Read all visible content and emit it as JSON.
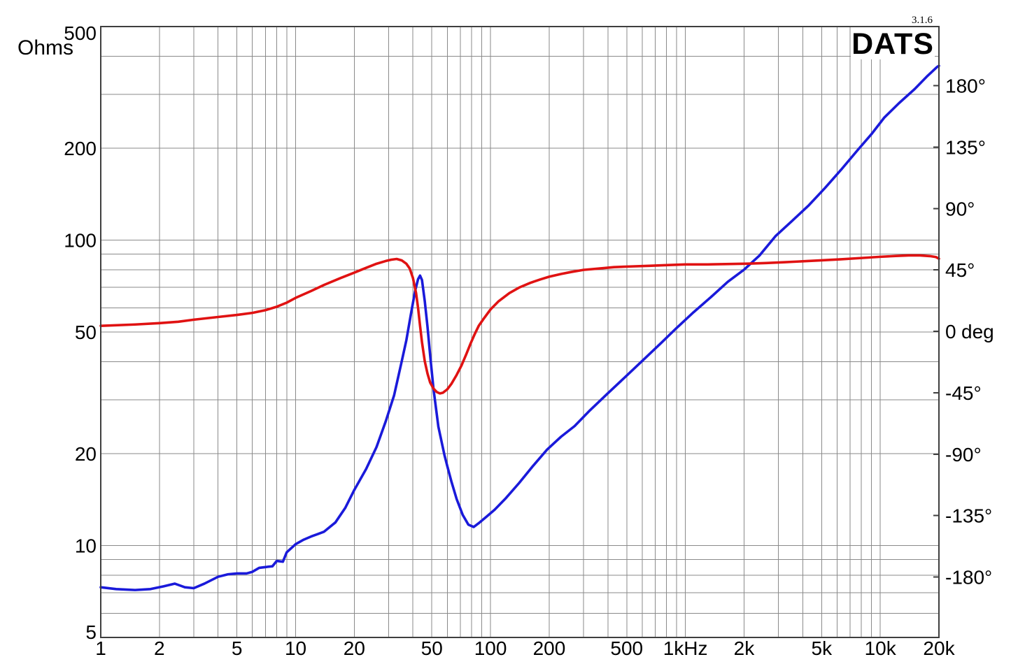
{
  "app": {
    "title": "DATS",
    "version": "3.1.6"
  },
  "labels": {
    "left_axis": "Ohms",
    "right_axis_zero": "0",
    "right_axis_unit": "deg"
  },
  "colors": {
    "impedance_curve": "#1a1ada",
    "phase_curve": "#e01212",
    "left_axis_label": "#3d3dff",
    "right_unit_label": "#ff2222",
    "logo": "#b1b100",
    "grid": "#8a8a8a",
    "border": "#3f3f3f",
    "text": "#000000",
    "background": "#ffffff"
  },
  "chart_data": {
    "type": "line",
    "title": "",
    "grid": true,
    "x_axis": {
      "scale": "log",
      "min": 1,
      "max": 20000,
      "unit": "Hz",
      "ticks": [
        {
          "value": 1,
          "label": "1"
        },
        {
          "value": 2,
          "label": "2"
        },
        {
          "value": 5,
          "label": "5"
        },
        {
          "value": 10,
          "label": "10"
        },
        {
          "value": 20,
          "label": "20"
        },
        {
          "value": 50,
          "label": "50"
        },
        {
          "value": 100,
          "label": "100"
        },
        {
          "value": 200,
          "label": "200"
        },
        {
          "value": 500,
          "label": "500"
        },
        {
          "value": 1000,
          "label": "1kHz"
        },
        {
          "value": 2000,
          "label": "2k"
        },
        {
          "value": 5000,
          "label": "5k"
        },
        {
          "value": 10000,
          "label": "10k"
        },
        {
          "value": 20000,
          "label": "20k"
        }
      ]
    },
    "y_left_axis": {
      "label": "Ohms",
      "scale": "log",
      "min": 5,
      "max": 500,
      "ticks": [
        {
          "value": 500,
          "label": "500"
        },
        {
          "value": 200,
          "label": "200"
        },
        {
          "value": 100,
          "label": "100"
        },
        {
          "value": 50,
          "label": "50"
        },
        {
          "value": 20,
          "label": "20"
        },
        {
          "value": 10,
          "label": "10"
        },
        {
          "value": 5,
          "label": "5"
        }
      ]
    },
    "y_right_axis": {
      "label": "deg",
      "scale": "linear",
      "min": -180,
      "max": 180,
      "ticks": [
        {
          "value": 180,
          "label": "180°"
        },
        {
          "value": 135,
          "label": "135°"
        },
        {
          "value": 90,
          "label": "90°"
        },
        {
          "value": 45,
          "label": "45°"
        },
        {
          "value": 0,
          "label": "0"
        },
        {
          "value": -45,
          "label": "-45°"
        },
        {
          "value": -90,
          "label": "-90°"
        },
        {
          "value": -135,
          "label": "-135°"
        },
        {
          "value": -180,
          "label": "-180°"
        }
      ]
    },
    "series": [
      {
        "name": "impedance_ohms",
        "axis": "left",
        "color_key": "impedance_curve",
        "points": [
          [
            1,
            7.3
          ],
          [
            1.2,
            7.2
          ],
          [
            1.5,
            7.15
          ],
          [
            1.8,
            7.2
          ],
          [
            2.1,
            7.35
          ],
          [
            2.4,
            7.5
          ],
          [
            2.7,
            7.3
          ],
          [
            3,
            7.25
          ],
          [
            3.4,
            7.5
          ],
          [
            4,
            7.9
          ],
          [
            4.5,
            8.05
          ],
          [
            5,
            8.1
          ],
          [
            5.6,
            8.1
          ],
          [
            6,
            8.2
          ],
          [
            6.5,
            8.45
          ],
          [
            7,
            8.5
          ],
          [
            7.6,
            8.55
          ],
          [
            8,
            8.9
          ],
          [
            8.6,
            8.85
          ],
          [
            9,
            9.5
          ],
          [
            10,
            10.1
          ],
          [
            11,
            10.45
          ],
          [
            12,
            10.7
          ],
          [
            13,
            10.9
          ],
          [
            14,
            11.1
          ],
          [
            16,
            11.9
          ],
          [
            18,
            13.3
          ],
          [
            20,
            15.2
          ],
          [
            23,
            17.8
          ],
          [
            26,
            21
          ],
          [
            29,
            25.5
          ],
          [
            32,
            31
          ],
          [
            35,
            40
          ],
          [
            37,
            47
          ],
          [
            39,
            57
          ],
          [
            41,
            68
          ],
          [
            42.5,
            74.5
          ],
          [
            43.5,
            76.5
          ],
          [
            44.5,
            74
          ],
          [
            46,
            63
          ],
          [
            47.5,
            52
          ],
          [
            49,
            42
          ],
          [
            51,
            32.5
          ],
          [
            54,
            24.5
          ],
          [
            58,
            19.8
          ],
          [
            60,
            18.2
          ],
          [
            63,
            16.2
          ],
          [
            67,
            14.2
          ],
          [
            72,
            12.6
          ],
          [
            77,
            11.7
          ],
          [
            82,
            11.5
          ],
          [
            88,
            11.9
          ],
          [
            95,
            12.4
          ],
          [
            105,
            13.1
          ],
          [
            120,
            14.3
          ],
          [
            140,
            16
          ],
          [
            165,
            18.2
          ],
          [
            195,
            20.6
          ],
          [
            230,
            22.7
          ],
          [
            270,
            24.6
          ],
          [
            320,
            27.5
          ],
          [
            400,
            31.5
          ],
          [
            500,
            36
          ],
          [
            620,
            41
          ],
          [
            750,
            46
          ],
          [
            900,
            51.5
          ],
          [
            1100,
            58
          ],
          [
            1350,
            65
          ],
          [
            1650,
            73
          ],
          [
            2000,
            80
          ],
          [
            2400,
            89
          ],
          [
            2900,
            103
          ],
          [
            3500,
            115
          ],
          [
            4300,
            130
          ],
          [
            5200,
            148
          ],
          [
            6300,
            170
          ],
          [
            7600,
            196
          ],
          [
            9000,
            222
          ],
          [
            10500,
            252
          ],
          [
            12500,
            281
          ],
          [
            15000,
            312
          ],
          [
            17500,
            345
          ],
          [
            19500,
            368
          ],
          [
            20000,
            372
          ]
        ]
      },
      {
        "name": "phase_deg",
        "axis": "right",
        "color_key": "phase_curve",
        "points": [
          [
            1,
            4
          ],
          [
            1.5,
            5
          ],
          [
            2,
            6
          ],
          [
            2.5,
            7
          ],
          [
            3,
            8.5
          ],
          [
            4,
            10.5
          ],
          [
            5,
            12
          ],
          [
            6,
            13.5
          ],
          [
            7,
            15.5
          ],
          [
            8,
            18
          ],
          [
            9,
            21
          ],
          [
            10,
            24.5
          ],
          [
            12,
            29.5
          ],
          [
            14,
            34
          ],
          [
            17,
            39
          ],
          [
            20,
            43
          ],
          [
            23,
            46.5
          ],
          [
            26,
            49.5
          ],
          [
            29,
            51.5
          ],
          [
            31,
            52.5
          ],
          [
            33,
            53
          ],
          [
            35,
            52
          ],
          [
            37,
            49.5
          ],
          [
            38.5,
            46
          ],
          [
            40,
            39
          ],
          [
            41.5,
            28
          ],
          [
            42.5,
            17
          ],
          [
            43.5,
            4
          ],
          [
            44.5,
            -8
          ],
          [
            46,
            -22
          ],
          [
            47.5,
            -31
          ],
          [
            49,
            -37.5
          ],
          [
            51,
            -42
          ],
          [
            53,
            -44.5
          ],
          [
            55,
            -45.5
          ],
          [
            57,
            -45
          ],
          [
            60,
            -42.5
          ],
          [
            63,
            -38.5
          ],
          [
            67,
            -32
          ],
          [
            71,
            -25
          ],
          [
            75,
            -17
          ],
          [
            79,
            -9
          ],
          [
            83,
            -2
          ],
          [
            87,
            4
          ],
          [
            92,
            9
          ],
          [
            100,
            16
          ],
          [
            110,
            22
          ],
          [
            125,
            28
          ],
          [
            140,
            32
          ],
          [
            160,
            35.5
          ],
          [
            180,
            38
          ],
          [
            200,
            40
          ],
          [
            230,
            42
          ],
          [
            260,
            43.5
          ],
          [
            300,
            45
          ],
          [
            360,
            46
          ],
          [
            430,
            47
          ],
          [
            520,
            47.5
          ],
          [
            650,
            48
          ],
          [
            800,
            48.5
          ],
          [
            1000,
            49
          ],
          [
            1300,
            49
          ],
          [
            1700,
            49.3
          ],
          [
            2100,
            49.6
          ],
          [
            2600,
            50
          ],
          [
            3200,
            50.6
          ],
          [
            4000,
            51.3
          ],
          [
            5000,
            52
          ],
          [
            6300,
            52.8
          ],
          [
            8000,
            53.7
          ],
          [
            10000,
            54.6
          ],
          [
            12000,
            55.2
          ],
          [
            14000,
            55.6
          ],
          [
            16000,
            55.6
          ],
          [
            18000,
            55.1
          ],
          [
            19300,
            54.4
          ],
          [
            19800,
            53.6
          ],
          [
            20000,
            53.2
          ]
        ]
      }
    ]
  }
}
